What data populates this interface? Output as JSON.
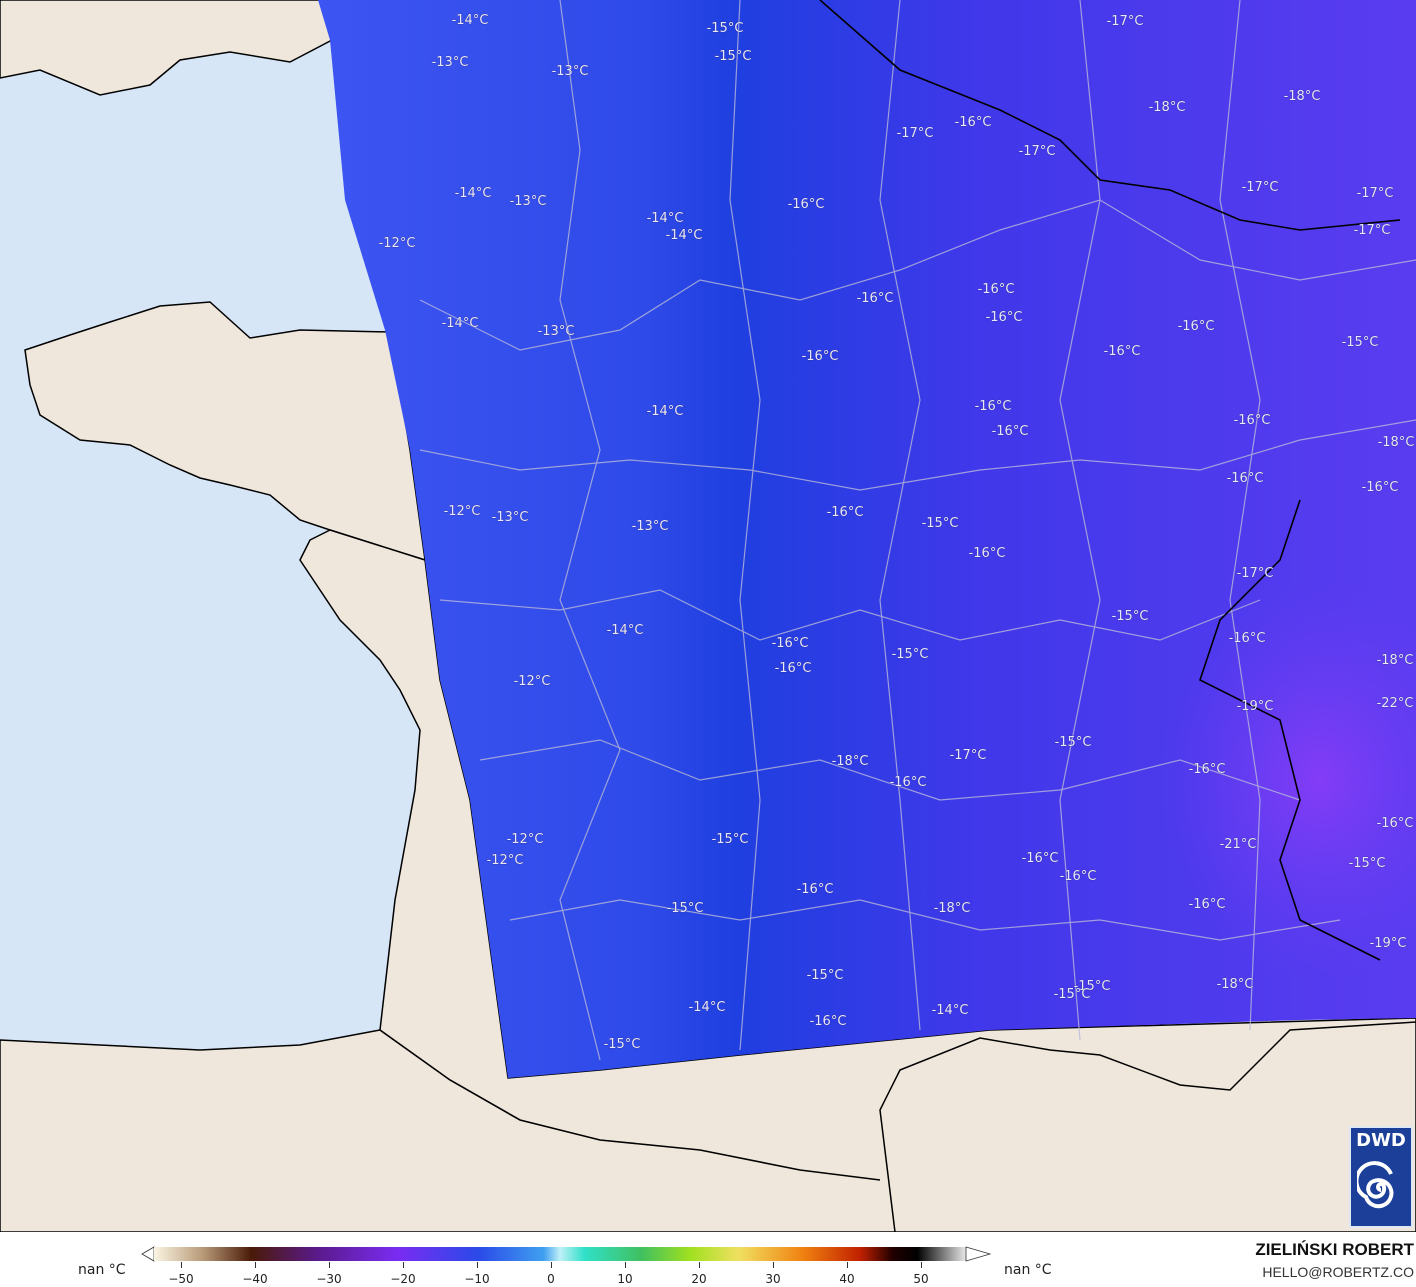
{
  "map": {
    "colors": {
      "sea": "#d6e6f7",
      "land": "#efe6dc",
      "field_west": "#3d55f2",
      "field_center": "#1f3fe0",
      "field_east": "#5a3cf0",
      "field_southeast": "#7a3cf5"
    },
    "labels": [
      "-14°C",
      "-15°C",
      "-17°C",
      "-13°C",
      "-13°C",
      "-15°C",
      "-18°C",
      "-18°C",
      "-17°C",
      "-16°C",
      "-17°C",
      "-14°C",
      "-13°C",
      "-14°C",
      "-14°C",
      "-16°C",
      "-17°C",
      "-17°C",
      "-17°C",
      "-12°C",
      "-16°C",
      "-16°C",
      "-16°C",
      "-14°C",
      "-13°C",
      "-16°C",
      "-15°C",
      "-16°C",
      "-16°C",
      "-14°C",
      "-16°C",
      "-16°C",
      "-16°C",
      "-18°C",
      "-16°C",
      "-16°C",
      "-12°C",
      "-13°C",
      "-13°C",
      "-16°C",
      "-15°C",
      "-16°C",
      "-17°C",
      "-15°C",
      "-14°C",
      "-16°C",
      "-16°C",
      "-16°C",
      "-15°C",
      "-18°C",
      "-12°C",
      "-19°C",
      "-22°C",
      "-15°C",
      "-18°C",
      "-17°C",
      "-16°C",
      "-16°C",
      "-16°C",
      "-12°C",
      "-15°C",
      "-21°C",
      "-12°C",
      "-16°C",
      "-16°C",
      "-15°C",
      "-16°C",
      "-15°C",
      "-18°C",
      "-16°C",
      "-19°C",
      "-15°C",
      "-14°C",
      "-14°C",
      "-15°C",
      "-15°C",
      "-18°C",
      "-16°C",
      "-15°C"
    ]
  },
  "logo": {
    "text": "DWD",
    "icon": "dwd-spiral-logo"
  },
  "legend": {
    "left_label": "nan °C",
    "right_label": "nan °C",
    "ticks": [
      "−50",
      "−40",
      "−30",
      "−20",
      "−10",
      "0",
      "10",
      "20",
      "30",
      "40",
      "50"
    ],
    "range": [
      -50,
      50
    ]
  },
  "credit": {
    "author": "ZIELIŃSKI ROBERT",
    "email": "HELLO@ROBERTZ.CO"
  }
}
